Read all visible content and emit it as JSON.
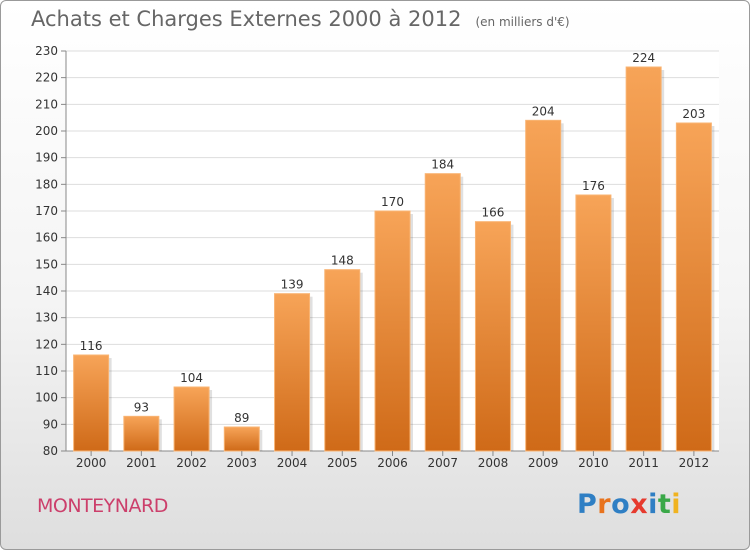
{
  "header": {
    "title": "Achats et Charges Externes 2000 à 2012",
    "subtitle": "(en milliers d'€)"
  },
  "footer": {
    "commune": "MONTEYNARD",
    "logo_text": "Proxiti",
    "logo_colors": [
      "#2f7fc4",
      "#e8731e",
      "#2f7fc4",
      "#e63a2e",
      "#2f7fc4",
      "#3aa848",
      "#f0b320"
    ]
  },
  "colors": {
    "bar_top": "#f7a458",
    "bar_bottom": "#cf6a18",
    "grid": "#dddddd",
    "axis": "#888888"
  },
  "chart_data": {
    "type": "bar",
    "title": "Achats et Charges Externes 2000 à 2012",
    "subtitle": "(en milliers d'€)",
    "categories": [
      "2000",
      "2001",
      "2002",
      "2003",
      "2004",
      "2005",
      "2006",
      "2007",
      "2008",
      "2009",
      "2010",
      "2011",
      "2012"
    ],
    "values": [
      116,
      93,
      104,
      89,
      139,
      148,
      170,
      184,
      166,
      204,
      176,
      224,
      203
    ],
    "ylim": [
      80,
      230
    ],
    "yticks": [
      80,
      90,
      100,
      110,
      120,
      130,
      140,
      150,
      160,
      170,
      180,
      190,
      200,
      210,
      220,
      230
    ],
    "grid": true,
    "data_labels": true
  }
}
